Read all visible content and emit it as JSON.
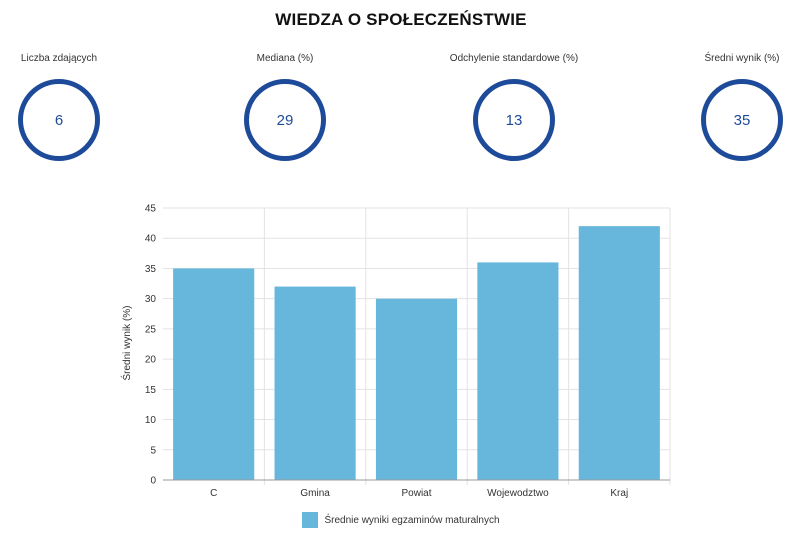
{
  "page": {
    "title": "WIEDZA O SPOŁECZEŃSTWIE"
  },
  "stats": [
    {
      "label": "Liczba zdających",
      "value": "6"
    },
    {
      "label": "Mediana (%)",
      "value": "29"
    },
    {
      "label": "Odchylenie standardowe (%)",
      "value": "13"
    },
    {
      "label": "Średni wynik (%)",
      "value": "35"
    }
  ],
  "colors": {
    "ring": "#1e4b99",
    "bar": "#67b6dc",
    "grid": "#e3e3e3",
    "axis": "#999999"
  },
  "chart_data": {
    "type": "bar",
    "categories": [
      "C",
      "Gmina",
      "Powiat",
      "Wojewodztwo",
      "Kraj"
    ],
    "series": [
      {
        "name": "Średnie wyniki egzaminów maturalnych",
        "values": [
          35,
          32,
          30,
          36,
          42
        ]
      }
    ],
    "ylabel": "Średni wynik (%)",
    "xlabel": "",
    "ylim": [
      0,
      45
    ],
    "yticks": [
      0,
      5,
      10,
      15,
      20,
      25,
      30,
      35,
      40,
      45
    ],
    "grid": true,
    "legend": "bottom-center"
  }
}
